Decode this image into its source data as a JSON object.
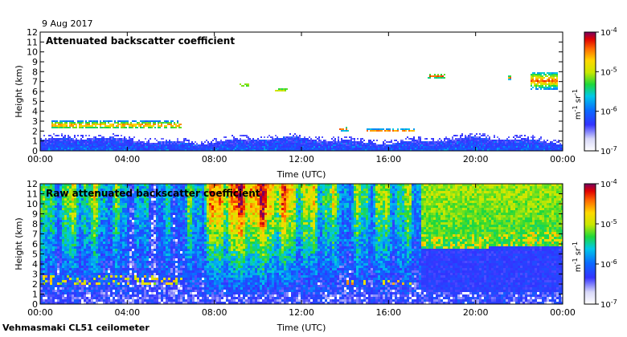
{
  "header": {
    "date": "9 Aug 2017"
  },
  "footer": {
    "instrument": "Vehmasmaki CL51 ceilometer"
  },
  "colorbar": {
    "unit_main": "m",
    "unit_sup1": "-1",
    "unit_mid": " sr",
    "unit_sup2": "-1"
  },
  "chart_data": [
    {
      "type": "heatmap",
      "title": "Attenuated backscatter coefficient",
      "xlabel": "Time (UTC)",
      "ylabel": "Height (km)",
      "xlim": [
        0,
        24
      ],
      "ylim": [
        0,
        12
      ],
      "x_tick_labels": [
        "00:00",
        "04:00",
        "08:00",
        "12:00",
        "16:00",
        "20:00",
        "00:00"
      ],
      "y_ticks": [
        0,
        1,
        2,
        3,
        4,
        5,
        6,
        7,
        8,
        9,
        10,
        11,
        12
      ],
      "colorbar": {
        "scale": "log",
        "range": [
          1e-07,
          0.0001
        ],
        "tick_bases": [
          "10",
          "10",
          "10",
          "10"
        ],
        "tick_exponents": [
          "-7",
          "-6",
          "-5",
          "-4"
        ]
      },
      "features": [
        {
          "name": "boundary layer",
          "x": [
            0,
            24
          ],
          "top_km": 1.2
        },
        {
          "name": "low cloud",
          "x": [
            0.5,
            6.5
          ],
          "height_km": [
            2.2,
            3.0
          ]
        },
        {
          "name": "cloud",
          "x": [
            9.1,
            9.6
          ],
          "height_km": [
            6.5,
            6.8
          ]
        },
        {
          "name": "cloud",
          "x": [
            10.8,
            11.4
          ],
          "height_km": [
            6.0,
            6.3
          ]
        },
        {
          "name": "cloud",
          "x": [
            13.7,
            14.2
          ],
          "height_km": [
            2.0,
            2.4
          ]
        },
        {
          "name": "cloud",
          "x": [
            15.0,
            17.2
          ],
          "height_km": [
            1.9,
            2.2
          ]
        },
        {
          "name": "cloud",
          "x": [
            17.8,
            18.6
          ],
          "height_km": [
            7.3,
            7.8
          ]
        },
        {
          "name": "cloud",
          "x": [
            21.5,
            21.6
          ],
          "height_km": [
            7.2,
            7.6
          ]
        },
        {
          "name": "cloud",
          "x": [
            22.5,
            23.8
          ],
          "height_km": [
            6.2,
            8.0
          ]
        }
      ]
    },
    {
      "type": "heatmap",
      "title": "Raw attenuated backscatter coefficient",
      "xlabel": "Time (UTC)",
      "ylabel": "Height (km)",
      "xlim": [
        0,
        24
      ],
      "ylim": [
        0,
        12
      ],
      "x_tick_labels": [
        "00:00",
        "04:00",
        "08:00",
        "12:00",
        "16:00",
        "20:00",
        "00:00"
      ],
      "y_ticks": [
        0,
        1,
        2,
        3,
        4,
        5,
        6,
        7,
        8,
        9,
        10,
        11,
        12
      ],
      "colorbar": {
        "scale": "log",
        "range": [
          1e-07,
          0.0001
        ],
        "tick_bases": [
          "10",
          "10",
          "10",
          "10"
        ],
        "tick_exponents": [
          "-7",
          "-6",
          "-5",
          "-4"
        ]
      },
      "features": [
        {
          "name": "noise-dominated upper region",
          "x": [
            0,
            17.5
          ],
          "height_km": [
            3,
            12
          ]
        },
        {
          "name": "high noise",
          "x": [
            7.5,
            13.5
          ],
          "height_km": [
            8,
            12
          ]
        },
        {
          "name": "cleaner upper region",
          "x": [
            17.5,
            24
          ],
          "height_km": [
            0,
            6
          ]
        }
      ]
    }
  ]
}
